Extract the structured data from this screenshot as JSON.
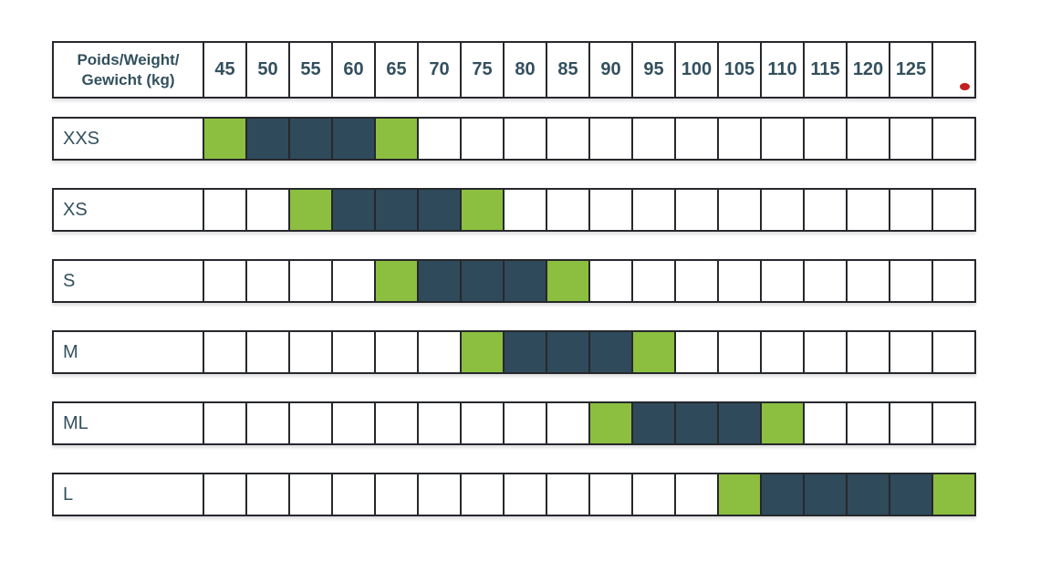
{
  "colors": {
    "green": "#8cbe3f",
    "dark_teal": "#2f4a5b",
    "border": "#26282c",
    "text": "#33505e",
    "red_dot": "#c2201f",
    "background": "#ffffff"
  },
  "header": {
    "label_line1": "Poids/Weight/",
    "label_line2": "Gewicht (kg)"
  },
  "chart_data": {
    "type": "table",
    "title": "Poids/Weight/Gewicht (kg)",
    "columns": [
      "45",
      "50",
      "55",
      "60",
      "65",
      "70",
      "75",
      "80",
      "85",
      "90",
      "95",
      "100",
      "105",
      "110",
      "115",
      "120",
      "125",
      ""
    ],
    "rows": [
      {
        "label": "XXS",
        "green": [
          "45",
          "65"
        ],
        "dark": [
          "50",
          "55",
          "60"
        ]
      },
      {
        "label": "XS",
        "green": [
          "55",
          "75"
        ],
        "dark": [
          "60",
          "65",
          "70"
        ]
      },
      {
        "label": "S",
        "green": [
          "65",
          "85"
        ],
        "dark": [
          "70",
          "75",
          "80"
        ]
      },
      {
        "label": "M",
        "green": [
          "75",
          "95"
        ],
        "dark": [
          "80",
          "85",
          "90"
        ]
      },
      {
        "label": "ML",
        "green": [
          "90",
          "110"
        ],
        "dark": [
          "95",
          "100",
          "105"
        ]
      },
      {
        "label": "L",
        "green": [
          "105",
          ""
        ],
        "dark": [
          "110",
          "115",
          "120",
          "125"
        ]
      }
    ],
    "cell_legend": {
      "green_hex": "#8cbe3f",
      "dark_hex": "#2f4a5b"
    },
    "layout_hints": {
      "grid": "on",
      "last_column_marker": "red-dot"
    }
  }
}
